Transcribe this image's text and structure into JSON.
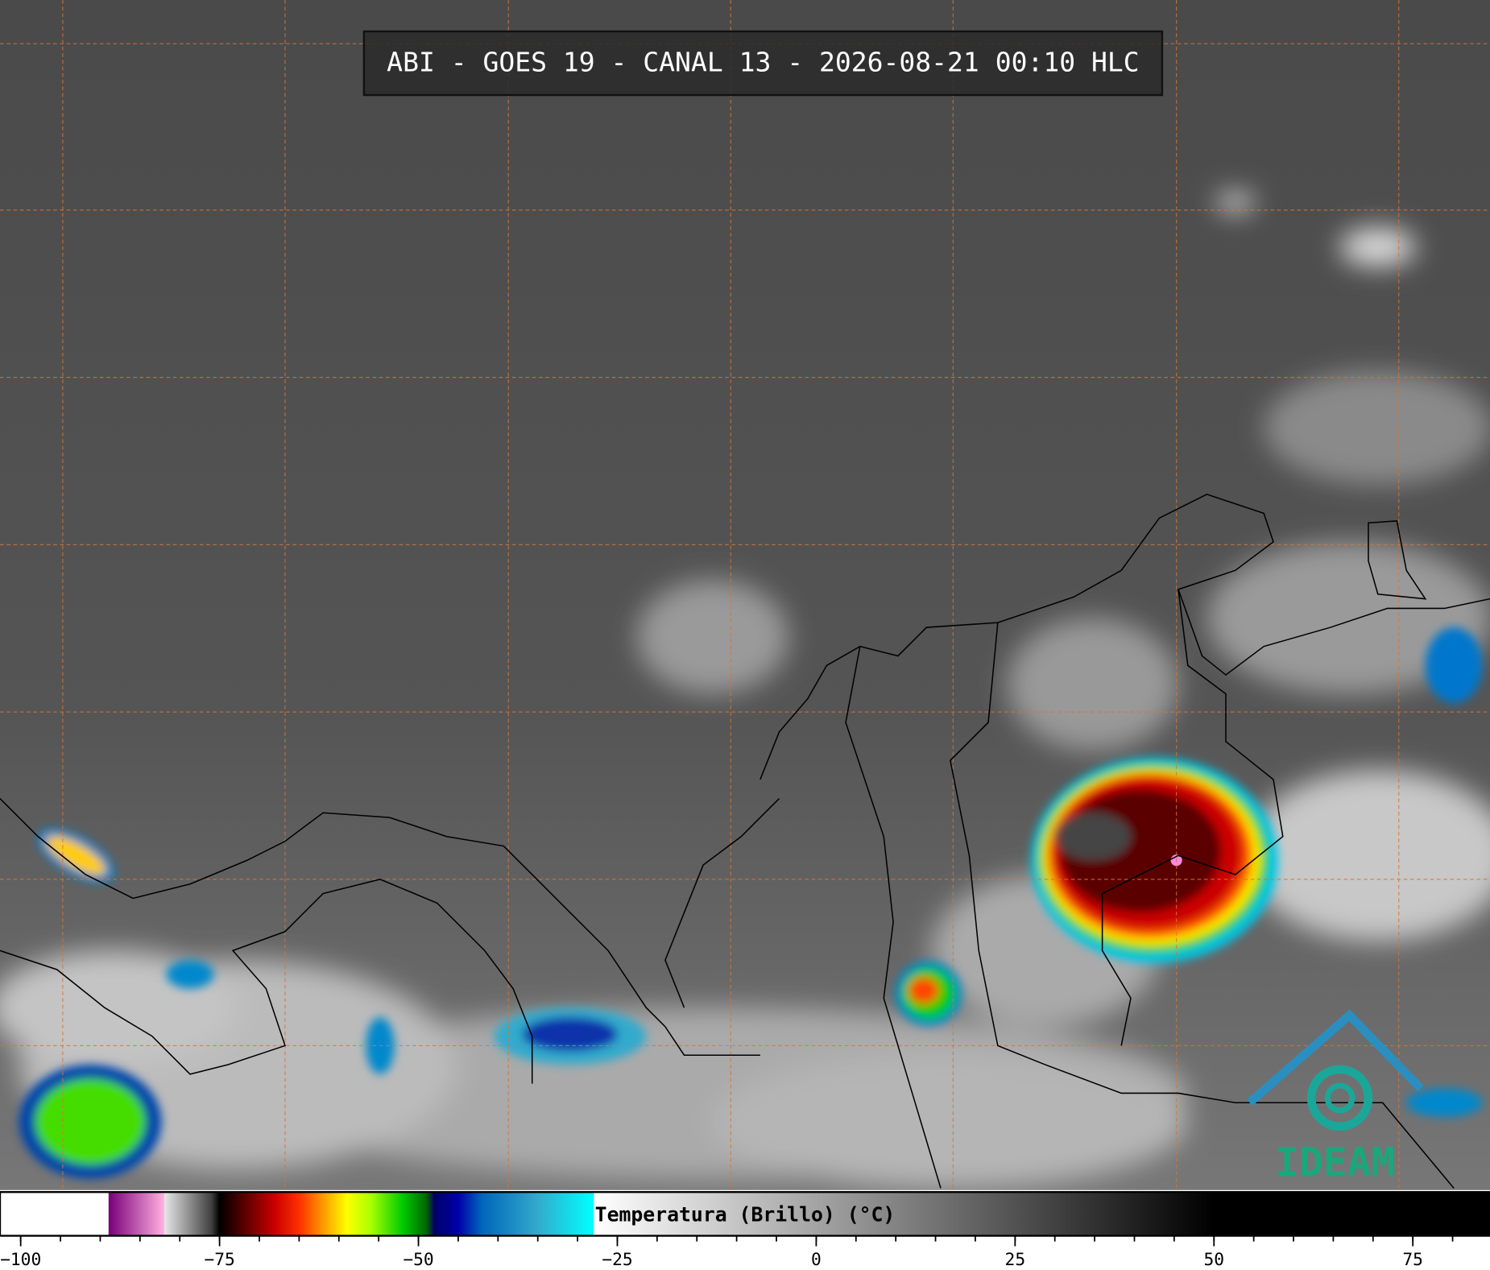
{
  "header": {
    "title": "ABI - GOES 19 - CANAL 13 - 2026-08-21 00:10 HLC"
  },
  "colorbar": {
    "label": "Temperatura (Brillo) (°C)",
    "lim": [
      -102.6,
      84.7
    ],
    "ticks": [
      {
        "value": -100,
        "label": "−100"
      },
      {
        "value": -75,
        "label": "−75"
      },
      {
        "value": -50,
        "label": "−50"
      },
      {
        "value": -25,
        "label": "−25"
      },
      0,
      25,
      50,
      75
    ],
    "minor_ticks": [
      -100,
      -95,
      -90,
      -85,
      -80,
      -75,
      -70,
      -65,
      -60,
      -55,
      -50,
      -45,
      -40,
      -35,
      -30,
      -25,
      -20,
      -15,
      -10,
      -5,
      0,
      5,
      10,
      15,
      20,
      25,
      30,
      35,
      40,
      45,
      50,
      55,
      60,
      65,
      70,
      75,
      80
    ],
    "colorscale": [
      [
        -102.6,
        "#ffffff"
      ],
      [
        -89,
        "#ffffff"
      ],
      [
        -88.9,
        "#7a007a"
      ],
      [
        -82,
        "#ffb0e0"
      ],
      [
        -81.9,
        "#e6e6e6"
      ],
      [
        -76,
        "#404040"
      ],
      [
        -75,
        "#000000"
      ],
      [
        -73,
        "#3a0000"
      ],
      [
        -68,
        "#cc0000"
      ],
      [
        -65,
        "#ff3000"
      ],
      [
        -62,
        "#ff9900"
      ],
      [
        -59,
        "#ffff00"
      ],
      [
        -56,
        "#aaff00"
      ],
      [
        -52,
        "#00cc00"
      ],
      [
        -49,
        "#006600"
      ],
      [
        -48,
        "#000066"
      ],
      [
        -45,
        "#0000aa"
      ],
      [
        -42,
        "#0066bb"
      ],
      [
        -35,
        "#33aacc"
      ],
      [
        -28,
        "#00ffff"
      ],
      [
        -27.9,
        "#ffffff"
      ],
      [
        50,
        "#000000"
      ],
      [
        84.7,
        "#000000"
      ]
    ]
  },
  "logo": {
    "text": "IDEAM"
  }
}
